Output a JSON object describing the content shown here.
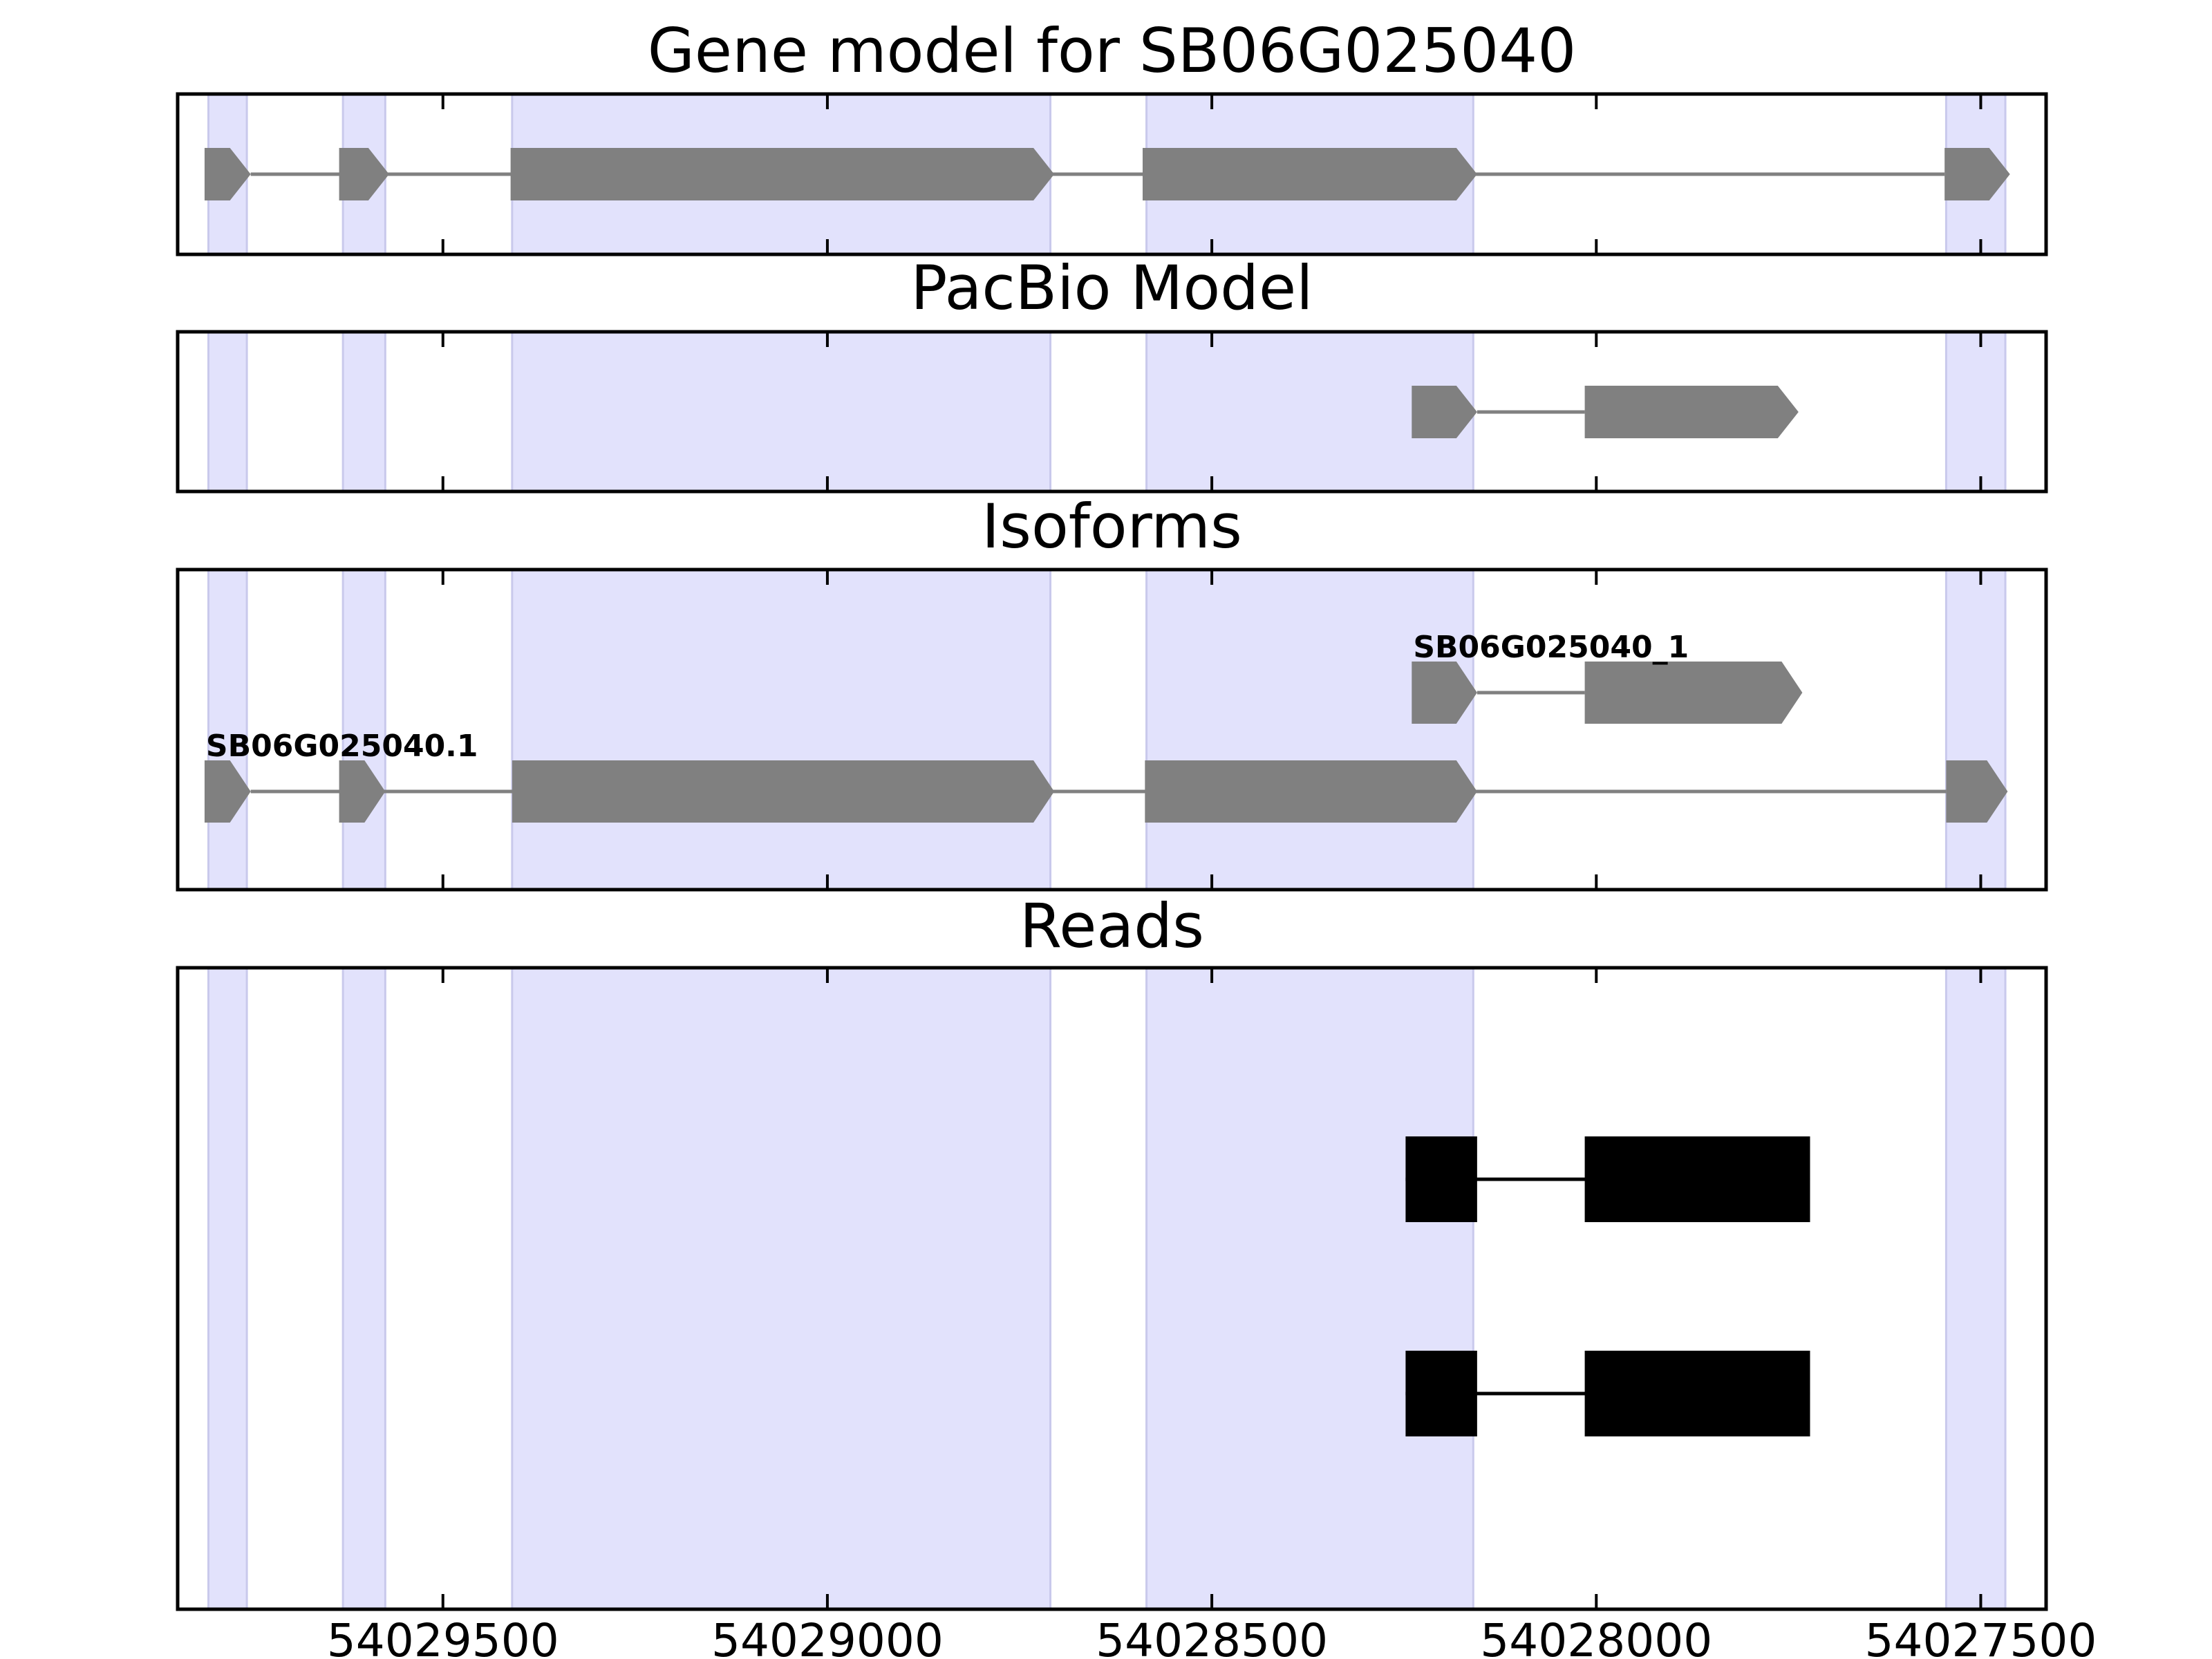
{
  "chart_data": {
    "type": "gene_track",
    "x_axis": {
      "range": [
        54029845,
        54027415
      ],
      "reversed": true,
      "ticks": [
        54029500,
        54029000,
        54028500,
        54028000,
        54027500
      ],
      "tick_labels": [
        "54029500",
        "54029000",
        "54028500",
        "54028000",
        "54027500"
      ]
    },
    "highlight_color": "#E2E2FC",
    "feature_color": "#808080",
    "read_color": "#000000",
    "exon_bands": [
      {
        "start": 54029805,
        "end": 54029755
      },
      {
        "start": 54029630,
        "end": 54029575
      },
      {
        "start": 54029410,
        "end": 54028710
      },
      {
        "start": 54028585,
        "end": 54028160
      },
      {
        "start": 54027545,
        "end": 54027468
      }
    ],
    "panels": [
      {
        "title": "Gene model for SB06G025040",
        "features": [
          {
            "label": "",
            "exons": [
              {
                "start": 54029810,
                "end": 54029750
              },
              {
                "start": 54029635,
                "end": 54029570
              },
              {
                "start": 54029412,
                "end": 54028705
              },
              {
                "start": 54028590,
                "end": 54028155
              },
              {
                "start": 54027547,
                "end": 54027462
              }
            ]
          }
        ]
      },
      {
        "title": "PacBio Model",
        "features": [
          {
            "label": "",
            "exons": [
              {
                "start": 54028240,
                "end": 54028155
              },
              {
                "start": 54028015,
                "end": 54027737
              }
            ]
          }
        ]
      },
      {
        "title": "Isoforms",
        "features": [
          {
            "label": "SB06G025040_1",
            "exons": [
              {
                "start": 54028240,
                "end": 54028155
              },
              {
                "start": 54028015,
                "end": 54027732
              }
            ]
          },
          {
            "label": "SB06G025040.1",
            "exons": [
              {
                "start": 54029810,
                "end": 54029750
              },
              {
                "start": 54029635,
                "end": 54029575
              },
              {
                "start": 54029410,
                "end": 54028705
              },
              {
                "start": 54028587,
                "end": 54028155
              },
              {
                "start": 54027545,
                "end": 54027465
              }
            ]
          }
        ]
      },
      {
        "title": "Reads",
        "reads": [
          {
            "blocks": [
              {
                "start": 54028248,
                "end": 54028155
              },
              {
                "start": 54028015,
                "end": 54027722
              }
            ]
          },
          {
            "blocks": [
              {
                "start": 54028248,
                "end": 54028155
              },
              {
                "start": 54028015,
                "end": 54027722
              }
            ]
          }
        ]
      }
    ]
  }
}
